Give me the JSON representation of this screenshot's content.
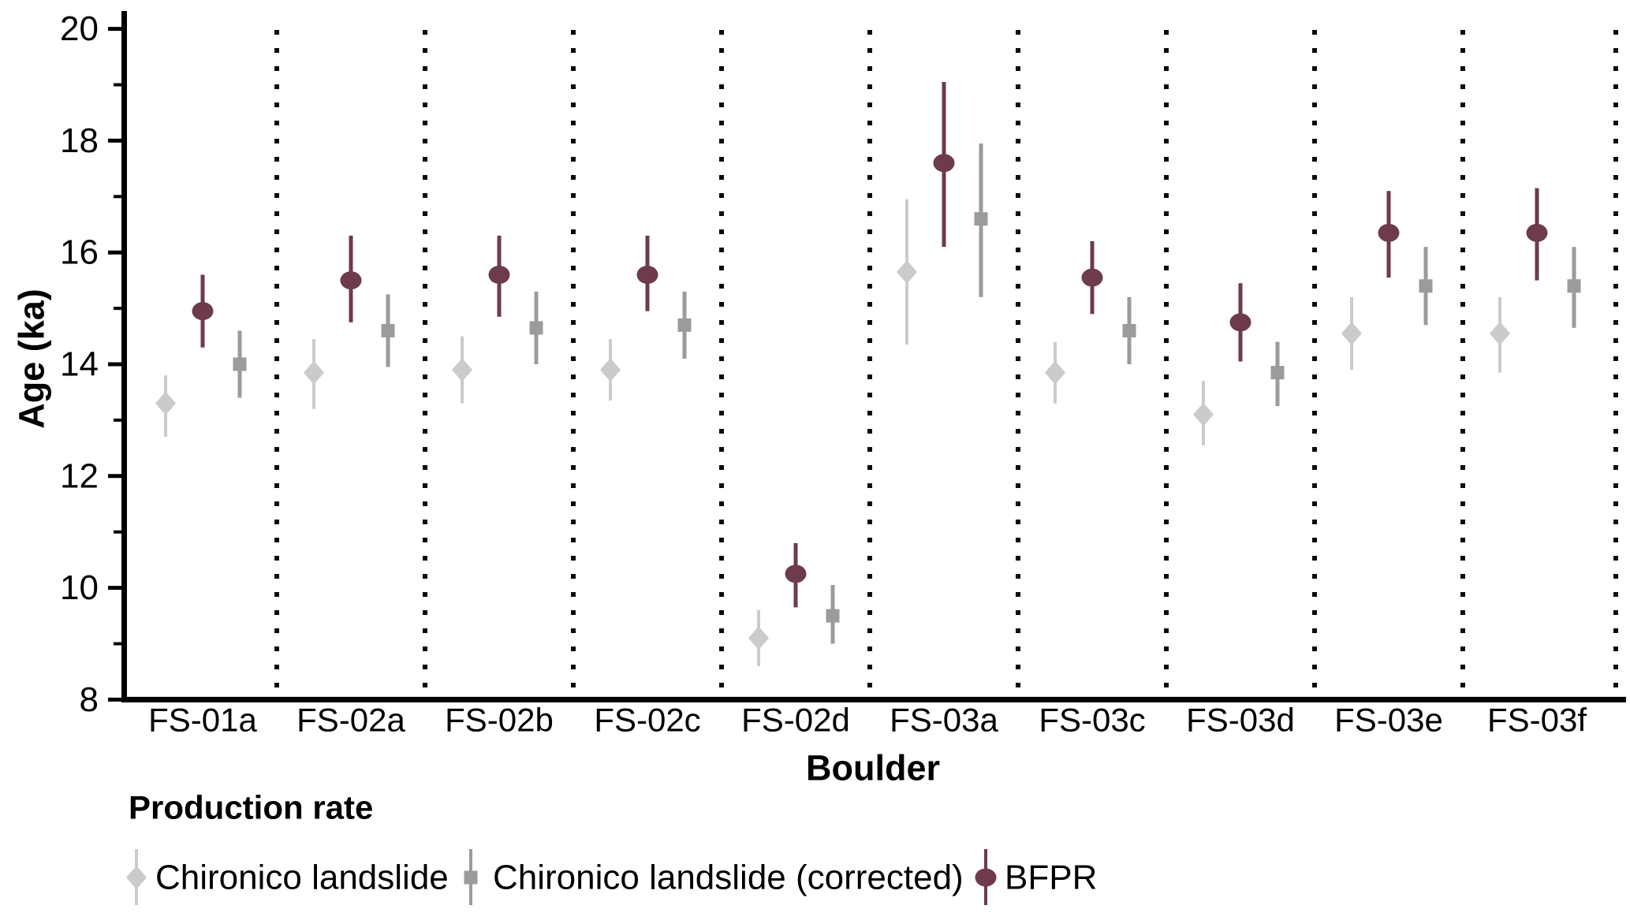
{
  "figure": {
    "background": "#ffffff",
    "text_color": "#000000",
    "separator_color": "#0a0a0a"
  },
  "legend": {
    "title": "Production rate",
    "items": [
      {
        "label": "Chironico landslide",
        "shape": "diamond",
        "color": "#cbcbcb"
      },
      {
        "label": "Chironico landslide (corrected)",
        "shape": "square",
        "color": "#9b9b9b"
      },
      {
        "label": "BFPR",
        "shape": "circle",
        "color": "#6d3a4e"
      }
    ]
  },
  "chart_data": {
    "type": "scatter",
    "title": "",
    "xlabel": "Boulder",
    "ylabel": "Age (ka)",
    "ylim": [
      8,
      20
    ],
    "y_major_ticks": [
      8,
      10,
      12,
      14,
      16,
      18,
      20
    ],
    "y_minor_ticks": [
      9,
      11,
      13,
      15,
      17,
      19
    ],
    "grid": "dotted vertical separators between category panels",
    "legend_position": "below chart, bottom-left",
    "categories": [
      "FS-01a",
      "FS-02a",
      "FS-02b",
      "FS-02c",
      "FS-02d",
      "FS-03a",
      "FS-03c",
      "FS-03d",
      "FS-03e",
      "FS-03f"
    ],
    "series": [
      {
        "name": "Chironico landslide",
        "marker": "diamond",
        "color": "#cbcbcb",
        "slot": 0,
        "points": [
          {
            "age": 13.3,
            "lo": 12.7,
            "hi": 13.8
          },
          {
            "age": 13.85,
            "lo": 13.2,
            "hi": 14.45
          },
          {
            "age": 13.9,
            "lo": 13.3,
            "hi": 14.5
          },
          {
            "age": 13.9,
            "lo": 13.35,
            "hi": 14.45
          },
          {
            "age": 9.1,
            "lo": 8.6,
            "hi": 9.6
          },
          {
            "age": 15.65,
            "lo": 14.35,
            "hi": 16.95
          },
          {
            "age": 13.85,
            "lo": 13.3,
            "hi": 14.4
          },
          {
            "age": 13.1,
            "lo": 12.55,
            "hi": 13.7
          },
          {
            "age": 14.55,
            "lo": 13.9,
            "hi": 15.2
          },
          {
            "age": 14.55,
            "lo": 13.85,
            "hi": 15.2
          }
        ]
      },
      {
        "name": "BFPR",
        "marker": "circle",
        "color": "#6d3a4e",
        "slot": 1,
        "points": [
          {
            "age": 14.95,
            "lo": 14.3,
            "hi": 15.6
          },
          {
            "age": 15.5,
            "lo": 14.75,
            "hi": 16.3
          },
          {
            "age": 15.6,
            "lo": 14.85,
            "hi": 16.3
          },
          {
            "age": 15.6,
            "lo": 14.95,
            "hi": 16.3
          },
          {
            "age": 10.25,
            "lo": 9.65,
            "hi": 10.8
          },
          {
            "age": 17.6,
            "lo": 16.1,
            "hi": 19.05
          },
          {
            "age": 15.55,
            "lo": 14.9,
            "hi": 16.2
          },
          {
            "age": 14.75,
            "lo": 14.05,
            "hi": 15.45
          },
          {
            "age": 16.35,
            "lo": 15.55,
            "hi": 17.1
          },
          {
            "age": 16.35,
            "lo": 15.5,
            "hi": 17.15
          }
        ]
      },
      {
        "name": "Chironico landslide (corrected)",
        "marker": "square",
        "color": "#9b9b9b",
        "slot": 2,
        "points": [
          {
            "age": 14.0,
            "lo": 13.4,
            "hi": 14.6
          },
          {
            "age": 14.6,
            "lo": 13.95,
            "hi": 15.25
          },
          {
            "age": 14.65,
            "lo": 14.0,
            "hi": 15.3
          },
          {
            "age": 14.7,
            "lo": 14.1,
            "hi": 15.3
          },
          {
            "age": 9.5,
            "lo": 9.0,
            "hi": 10.05
          },
          {
            "age": 16.6,
            "lo": 15.2,
            "hi": 17.95
          },
          {
            "age": 14.6,
            "lo": 14.0,
            "hi": 15.2
          },
          {
            "age": 13.85,
            "lo": 13.25,
            "hi": 14.4
          },
          {
            "age": 15.4,
            "lo": 14.7,
            "hi": 16.1
          },
          {
            "age": 15.4,
            "lo": 14.65,
            "hi": 16.1
          }
        ]
      }
    ]
  }
}
